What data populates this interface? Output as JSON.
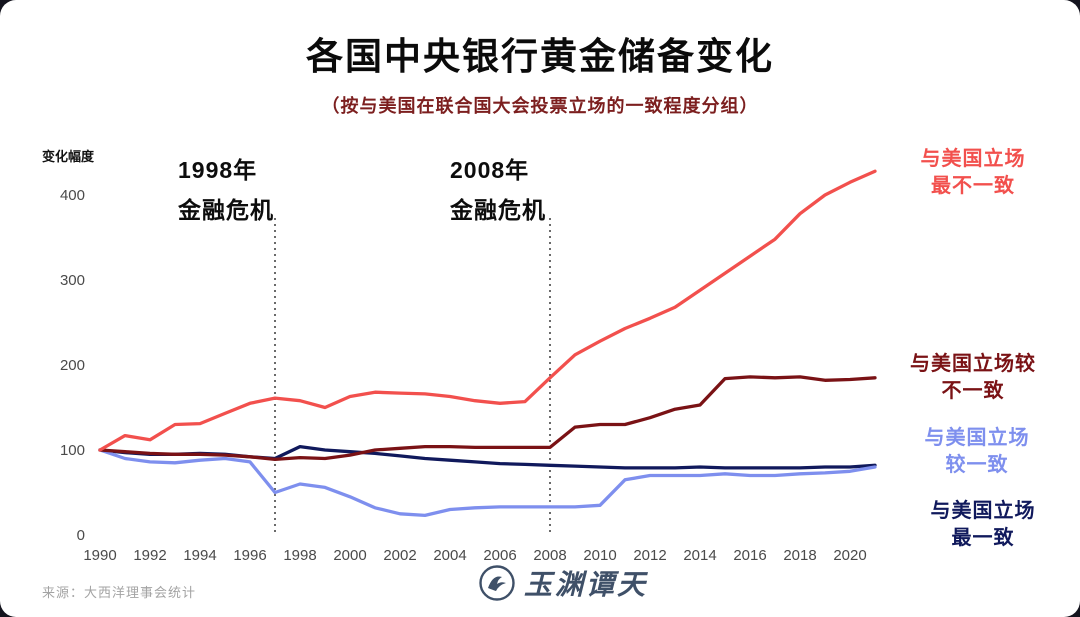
{
  "header": {
    "title": "各国中央银行黄金储备变化",
    "subtitle": "（按与美国在联合国大会投票立场的一致程度分组）"
  },
  "chart_data": {
    "type": "line",
    "title": "各国中央银行黄金储备变化",
    "subtitle": "（按与美国在联合国大会投票立场的一致程度分组）",
    "ylabel": "变化幅度",
    "xlabel": "",
    "ylim": [
      0,
      450
    ],
    "yticks": [
      0,
      100,
      200,
      300,
      400
    ],
    "xticks": [
      1990,
      1992,
      1994,
      1996,
      1998,
      2000,
      2002,
      2004,
      2006,
      2008,
      2010,
      2012,
      2014,
      2016,
      2018,
      2020
    ],
    "grid": false,
    "legend_position": "right",
    "x": [
      1990,
      1991,
      1992,
      1993,
      1994,
      1995,
      1996,
      1997,
      1998,
      1999,
      2000,
      2001,
      2002,
      2003,
      2004,
      2005,
      2006,
      2007,
      2008,
      2009,
      2010,
      2011,
      2012,
      2013,
      2014,
      2015,
      2016,
      2017,
      2018,
      2019,
      2020,
      2021
    ],
    "series": [
      {
        "name": "与美国立场最不一致",
        "color": "#f2504d",
        "values": [
          100,
          117,
          112,
          130,
          131,
          143,
          155,
          161,
          158,
          150,
          163,
          168,
          167,
          166,
          163,
          158,
          155,
          157,
          185,
          212,
          228,
          243,
          255,
          268,
          288,
          308,
          328,
          348,
          378,
          400,
          415,
          428
        ]
      },
      {
        "name": "与美国立场较不一致",
        "color": "#7a1215",
        "values": [
          100,
          98,
          96,
          95,
          95,
          94,
          92,
          89,
          91,
          90,
          94,
          100,
          102,
          104,
          104,
          103,
          103,
          103,
          103,
          127,
          130,
          130,
          138,
          148,
          153,
          184,
          186,
          185,
          186,
          182,
          183,
          185
        ]
      },
      {
        "name": "与美国立场较一致",
        "color": "#7e8fee",
        "values": [
          100,
          90,
          86,
          85,
          88,
          90,
          86,
          50,
          60,
          56,
          45,
          32,
          25,
          23,
          30,
          32,
          33,
          33,
          33,
          33,
          35,
          65,
          70,
          70,
          70,
          72,
          70,
          70,
          72,
          73,
          75,
          80
        ]
      },
      {
        "name": "与美国立场最一致",
        "color": "#10195c",
        "values": [
          100,
          97,
          95,
          95,
          96,
          95,
          92,
          90,
          104,
          100,
          98,
          96,
          93,
          90,
          88,
          86,
          84,
          83,
          82,
          81,
          80,
          79,
          79,
          79,
          80,
          79,
          79,
          79,
          79,
          80,
          80,
          82
        ]
      }
    ],
    "annotations": [
      {
        "x": 1997,
        "lines": [
          "1998年",
          "金融危机"
        ]
      },
      {
        "x": 2008,
        "lines": [
          "2008年",
          "金融危机"
        ]
      }
    ]
  },
  "legend": [
    {
      "lines": [
        "与美国立场",
        "最不一致"
      ],
      "color": "#f2504d"
    },
    {
      "lines": [
        "与美国立场较",
        "不一致"
      ],
      "color": "#7a1215"
    },
    {
      "lines": [
        "与美国立场",
        "较一致"
      ],
      "color": "#7e8fee"
    },
    {
      "lines": [
        "与美国立场",
        "最一致"
      ],
      "color": "#10195c"
    }
  ],
  "footer": {
    "source": "来源：大西洋理事会统计",
    "logo_text": "玉渊谭天"
  }
}
